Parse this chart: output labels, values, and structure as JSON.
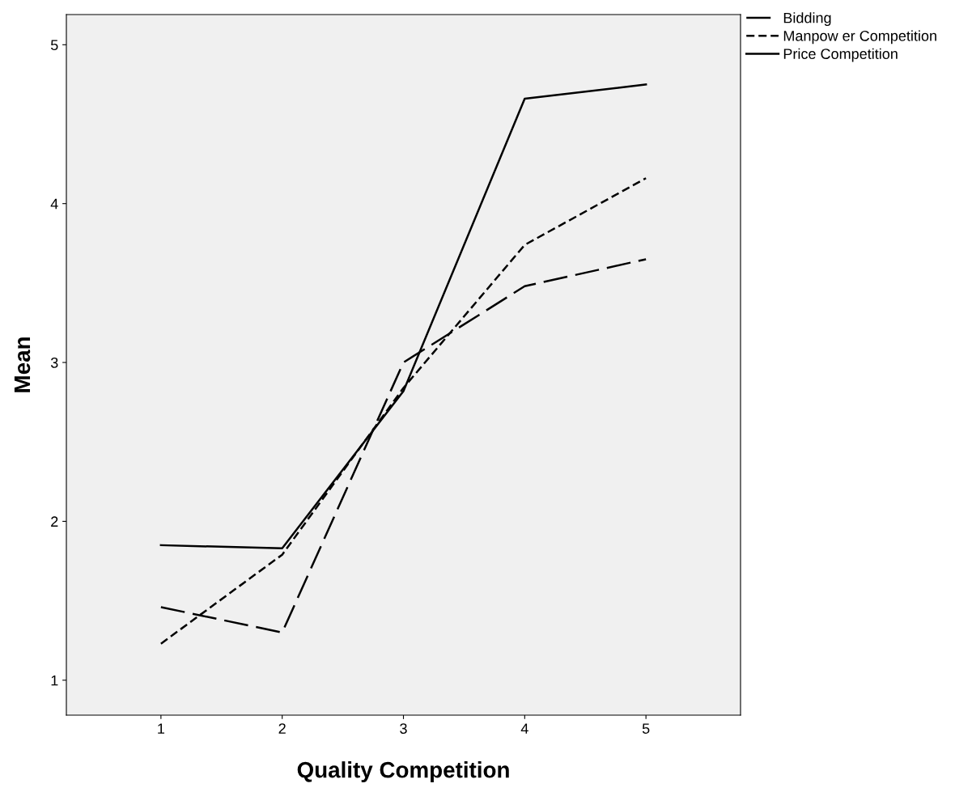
{
  "chart_data": {
    "type": "line",
    "xlabel": "Quality Competition",
    "ylabel": "Mean",
    "x": [
      1,
      2,
      3,
      4,
      5
    ],
    "xlim": [
      0.22,
      5.78
    ],
    "ylim": [
      0.78,
      5.19
    ],
    "xticks": [
      1,
      2,
      3,
      4,
      5
    ],
    "yticks": [
      1,
      2,
      3,
      4,
      5
    ],
    "grid": false,
    "legend": "top right",
    "marker": "none",
    "series": [
      {
        "name": "Bidding",
        "color": "#000000",
        "line_style": "dashed",
        "values": [
          1.46,
          1.3,
          3.0,
          3.48,
          3.65
        ]
      },
      {
        "name": "Manpow er Competition",
        "color": "#000000",
        "line_style": "dotted",
        "values": [
          1.23,
          1.79,
          2.84,
          3.74,
          4.16
        ]
      },
      {
        "name": "Price Competition",
        "color": "#000000",
        "line_style": "solid",
        "values": [
          1.85,
          1.83,
          2.82,
          4.66,
          4.75
        ]
      }
    ]
  }
}
